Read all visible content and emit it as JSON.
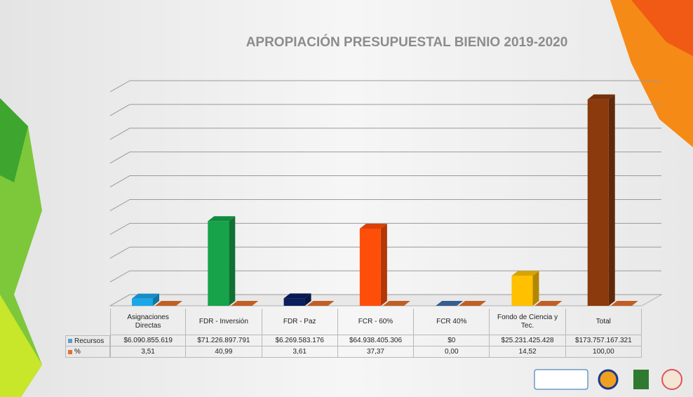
{
  "chart_data": {
    "type": "bar3d",
    "title": "APROPIACIÓN PRESUPUESTAL BIENIO  2019-2020",
    "categories": [
      "Asignaciones Directas",
      "FDR - Inversión",
      "FDR - Paz",
      "FCR - 60%",
      "FCR 40%",
      "Fondo de Ciencia y Tec.",
      "Total"
    ],
    "series": [
      {
        "name": "Recursos",
        "color": "#5b9bd5",
        "colors": [
          "#1aa7e8",
          "#16a34a",
          "#0b1f5e",
          "#ff4e0a",
          "#3e6fa8",
          "#ffc000",
          "#8a3a0c"
        ],
        "values": [
          6090855619,
          71226897791,
          6269583176,
          64938405306,
          0,
          25231425428,
          173757167321
        ],
        "value_labels": [
          "$6.090.855.619",
          "$71.226.897.791",
          "$6.269.583.176",
          "$64.938.405.306",
          "$0",
          "$25.231.425.428",
          "$173.757.167.321"
        ]
      },
      {
        "name": "%",
        "color": "#e2702c",
        "values": [
          3.51,
          40.99,
          3.61,
          37.37,
          0,
          14.52,
          100
        ],
        "value_labels": [
          "3,51",
          "40,99",
          "3,61",
          "37,37",
          "0,00",
          "14,52",
          "100,00"
        ]
      }
    ],
    "ylim": [
      0,
      180000000000
    ],
    "yticks": [
      0,
      20000000000,
      40000000000,
      60000000000,
      80000000000,
      100000000000,
      120000000000,
      140000000000,
      160000000000,
      180000000000
    ],
    "grid": true
  }
}
